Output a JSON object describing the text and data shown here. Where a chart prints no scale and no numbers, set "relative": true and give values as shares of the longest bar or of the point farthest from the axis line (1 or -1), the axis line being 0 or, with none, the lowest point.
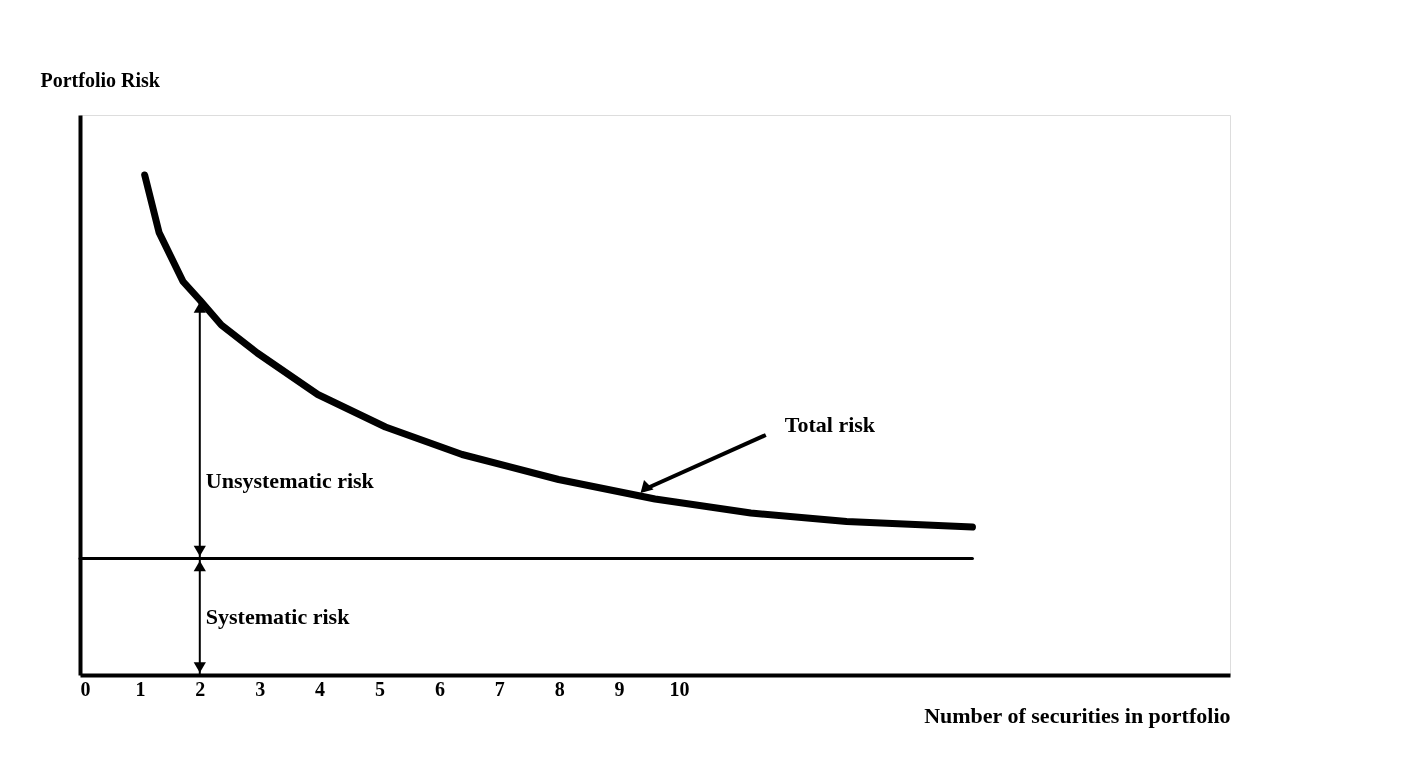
{
  "chart_data": {
    "type": "line",
    "relative": true,
    "xlabel": "Number of securities in portfolio",
    "ylabel": "Portfolio Risk",
    "xlim": [
      0,
      19.2
    ],
    "xticks": [
      0,
      1,
      2,
      3,
      4,
      5,
      6,
      7,
      8,
      9,
      10
    ],
    "tick_labels": "x",
    "grid": false,
    "marker": "none",
    "line_style": "solid",
    "series": [
      {
        "color": "#000000",
        "x": [
          1.08,
          1.32,
          1.72,
          2.0,
          2.36,
          2.96,
          3.97,
          5.1,
          6.38,
          7.99,
          9.6,
          11.2,
          12.8,
          14.9
        ],
        "values": [
          1,
          0.885,
          0.787,
          0.75,
          0.7,
          0.644,
          0.561,
          0.496,
          0.441,
          0.391,
          0.352,
          0.324,
          0.307,
          0.296
        ]
      },
      {
        "color": "#000000",
        "x": [
          0,
          14.9
        ],
        "values": [
          0.233,
          0.233
        ]
      }
    ],
    "annotations": [
      {
        "text": "Total risk",
        "x": 9.3,
        "y": 0.36
      },
      "Unsystematic risk",
      "Systematic risk"
    ]
  }
}
